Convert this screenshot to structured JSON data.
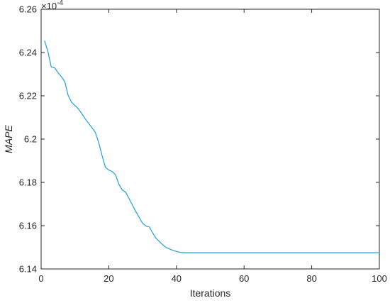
{
  "chart_data": {
    "type": "line",
    "title": "",
    "xlabel": "Iterations",
    "ylabel": "MAPE",
    "y_multiplier_base": "×10",
    "y_multiplier_exponent": "-4",
    "xlim": [
      0,
      100
    ],
    "ylim": [
      6.14,
      6.26
    ],
    "x_ticks": [
      0,
      20,
      40,
      60,
      80,
      100
    ],
    "x_tick_labels": [
      "0",
      "20",
      "40",
      "60",
      "80",
      "100"
    ],
    "y_ticks": [
      6.14,
      6.16,
      6.18,
      6.2,
      6.22,
      6.24,
      6.26
    ],
    "y_tick_labels": [
      "6.14",
      "6.16",
      "6.18",
      "6.2",
      "6.22",
      "6.24",
      "6.26"
    ],
    "grid": false,
    "line_color": "#1f9fd8",
    "series": [
      {
        "x": [
          1,
          2,
          3,
          4,
          5,
          6,
          7,
          8,
          9,
          10,
          11,
          12,
          13,
          14,
          15,
          16,
          17,
          18,
          19,
          20,
          21,
          22,
          23,
          24,
          25,
          26,
          27,
          28,
          29,
          30,
          31,
          32,
          33,
          34,
          35,
          36,
          37,
          38,
          39,
          40,
          41,
          42,
          43,
          44,
          45,
          50,
          60,
          70,
          80,
          90,
          100
        ],
        "values": [
          6.2455,
          6.2405,
          6.2333,
          6.2329,
          6.2307,
          6.2288,
          6.2265,
          6.2201,
          6.217,
          6.2155,
          6.214,
          6.2118,
          6.2094,
          6.2074,
          6.2053,
          6.2032,
          6.1985,
          6.1925,
          6.187,
          6.1857,
          6.185,
          6.1835,
          6.1791,
          6.1765,
          6.1754,
          6.1725,
          6.1695,
          6.1665,
          6.1638,
          6.1611,
          6.1598,
          6.1594,
          6.1566,
          6.1541,
          6.1526,
          6.1511,
          6.1499,
          6.1492,
          6.1486,
          6.1481,
          6.1477,
          6.1475,
          6.1475,
          6.1475,
          6.1475,
          6.1475,
          6.1475,
          6.1475,
          6.1475,
          6.1475,
          6.1475
        ]
      }
    ]
  }
}
